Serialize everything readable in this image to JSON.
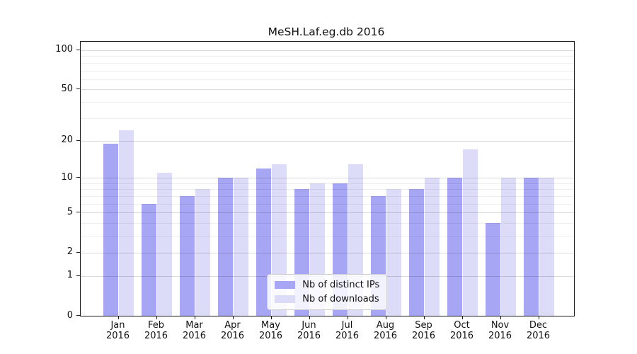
{
  "chart_data": {
    "type": "bar",
    "title": "MeSH.Laf.eg.db 2016",
    "categories": [
      "Jan",
      "Feb",
      "Mar",
      "Apr",
      "May",
      "Jun",
      "Jul",
      "Aug",
      "Sep",
      "Oct",
      "Nov",
      "Dec"
    ],
    "year": "2016",
    "series": [
      {
        "name": "Nb of distinct IPs",
        "color": "#a6a6f4",
        "values": [
          19,
          6,
          7,
          10,
          12,
          8,
          9,
          7,
          8,
          10,
          4,
          10
        ]
      },
      {
        "name": "Nb of downloads",
        "color": "#dcdcf9",
        "values": [
          24,
          11,
          8,
          10,
          13,
          9,
          13,
          8,
          10,
          17,
          10,
          10
        ]
      }
    ],
    "y_scale": "log1p",
    "ylim": [
      0,
      116
    ],
    "y_ticks": [
      0,
      1,
      2,
      5,
      10,
      20,
      50,
      100
    ],
    "y_minor_gridlines": [
      3,
      4,
      6,
      7,
      8,
      9,
      30,
      40,
      60,
      70,
      80,
      90
    ],
    "xlabel": "",
    "ylabel": "",
    "grid": "both",
    "legend_position": "lower center"
  }
}
